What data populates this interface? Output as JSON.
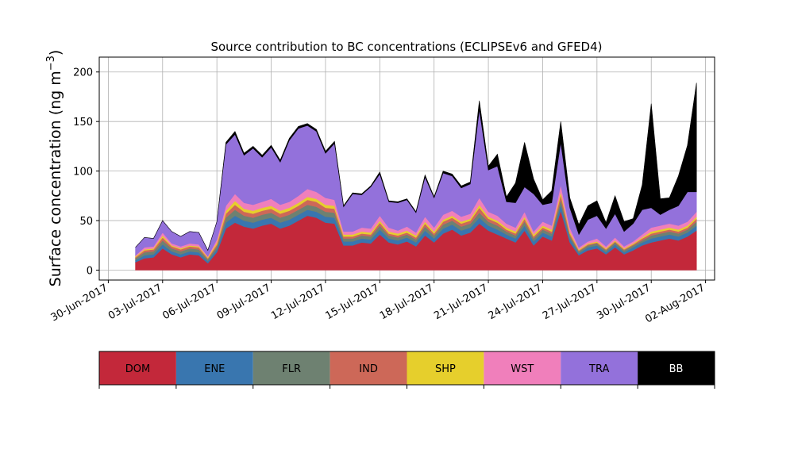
{
  "chart_data": {
    "type": "area",
    "stacked": true,
    "title": "Source contribution to BC concentrations (ECLIPSEv6 and GFED4)",
    "ylabel": "Surface concentration (ng m",
    "ylabel_unit_exponent": "−3",
    "ylabel_close": ")",
    "xlabel": "",
    "x_axis_type": "date",
    "xlim": [
      "2017-06-29T12:00",
      "2017-08-02T12:00"
    ],
    "ylim": [
      -10,
      215
    ],
    "yticks": [
      0,
      50,
      100,
      150,
      200
    ],
    "xticks": [
      "2017-06-30",
      "2017-07-03",
      "2017-07-06",
      "2017-07-09",
      "2017-07-12",
      "2017-07-15",
      "2017-07-18",
      "2017-07-21",
      "2017-07-24",
      "2017-07-27",
      "2017-07-30",
      "2017-08-02"
    ],
    "xtick_labels": [
      "30-Jun-2017",
      "03-Jul-2017",
      "06-Jul-2017",
      "09-Jul-2017",
      "12-Jul-2017",
      "15-Jul-2017",
      "18-Jul-2017",
      "21-Jul-2017",
      "24-Jul-2017",
      "27-Jul-2017",
      "30-Jul-2017",
      "02-Aug-2017"
    ],
    "grid": true,
    "legend_placement": "below",
    "x": [
      "2017-07-01T12:00",
      "2017-07-02T00:00",
      "2017-07-02T12:00",
      "2017-07-03T00:00",
      "2017-07-03T12:00",
      "2017-07-04T00:00",
      "2017-07-04T12:00",
      "2017-07-05T00:00",
      "2017-07-05T12:00",
      "2017-07-06T00:00",
      "2017-07-06T12:00",
      "2017-07-07T00:00",
      "2017-07-07T12:00",
      "2017-07-08T00:00",
      "2017-07-08T12:00",
      "2017-07-09T00:00",
      "2017-07-09T12:00",
      "2017-07-10T00:00",
      "2017-07-10T12:00",
      "2017-07-11T00:00",
      "2017-07-11T12:00",
      "2017-07-12T00:00",
      "2017-07-12T12:00",
      "2017-07-13T00:00",
      "2017-07-13T12:00",
      "2017-07-14T00:00",
      "2017-07-14T12:00",
      "2017-07-15T00:00",
      "2017-07-15T12:00",
      "2017-07-16T00:00",
      "2017-07-16T12:00",
      "2017-07-17T00:00",
      "2017-07-17T12:00",
      "2017-07-18T00:00",
      "2017-07-18T12:00",
      "2017-07-19T00:00",
      "2017-07-19T12:00",
      "2017-07-20T00:00",
      "2017-07-20T12:00",
      "2017-07-21T00:00",
      "2017-07-21T12:00",
      "2017-07-22T00:00",
      "2017-07-22T12:00",
      "2017-07-23T00:00",
      "2017-07-23T12:00",
      "2017-07-24T00:00",
      "2017-07-24T12:00",
      "2017-07-25T00:00",
      "2017-07-25T12:00",
      "2017-07-26T00:00",
      "2017-07-26T12:00",
      "2017-07-27T00:00",
      "2017-07-27T12:00",
      "2017-07-28T00:00",
      "2017-07-28T12:00",
      "2017-07-29T00:00",
      "2017-07-29T12:00",
      "2017-07-30T00:00",
      "2017-07-30T12:00",
      "2017-07-31T00:00",
      "2017-07-31T12:00",
      "2017-08-01T00:00",
      "2017-08-01T12:00"
    ],
    "series": [
      {
        "name": "DOM",
        "color": "#c3283a",
        "values": [
          8,
          12,
          13,
          22,
          16,
          13,
          16,
          15,
          7,
          18,
          42,
          48,
          44,
          42,
          45,
          47,
          42,
          45,
          50,
          55,
          53,
          48,
          47,
          25,
          25,
          28,
          27,
          36,
          28,
          26,
          29,
          24,
          35,
          28,
          37,
          41,
          35,
          38,
          47,
          40,
          36,
          32,
          28,
          40,
          25,
          34,
          30,
          60,
          28,
          15,
          20,
          22,
          16,
          23,
          16,
          20,
          25,
          28,
          30,
          32,
          30,
          34,
          40
        ]
      },
      {
        "name": "ENE",
        "color": "#3976af",
        "values": [
          2,
          3,
          3,
          4,
          3,
          3,
          3,
          3,
          2,
          3,
          6,
          7,
          6,
          6,
          6,
          6,
          6,
          6,
          6,
          6,
          6,
          6,
          6,
          4,
          4,
          4,
          4,
          5,
          4,
          4,
          4,
          4,
          5,
          4,
          5,
          5,
          5,
          5,
          6,
          5,
          5,
          4,
          4,
          5,
          4,
          4,
          4,
          6,
          4,
          2,
          3,
          3,
          2,
          3,
          2,
          3,
          3,
          4,
          4,
          4,
          4,
          4,
          5
        ]
      },
      {
        "name": "FLR",
        "color": "#6e8171",
        "values": [
          2,
          3,
          3,
          4,
          3,
          3,
          3,
          3,
          2,
          3,
          5,
          6,
          5,
          5,
          5,
          5,
          5,
          5,
          5,
          5,
          5,
          5,
          5,
          3,
          3,
          3,
          3,
          4,
          3,
          3,
          3,
          3,
          4,
          3,
          4,
          4,
          4,
          4,
          5,
          4,
          4,
          3,
          3,
          4,
          3,
          3,
          3,
          5,
          3,
          2,
          2,
          2,
          2,
          2,
          2,
          2,
          2,
          3,
          3,
          3,
          3,
          3,
          4
        ]
      },
      {
        "name": "IND",
        "color": "#cd6858",
        "values": [
          1,
          2,
          2,
          3,
          2,
          2,
          2,
          2,
          1,
          2,
          4,
          5,
          4,
          4,
          4,
          4,
          4,
          4,
          4,
          5,
          5,
          4,
          4,
          2,
          2,
          2,
          2,
          3,
          2,
          2,
          2,
          2,
          3,
          2,
          3,
          3,
          3,
          3,
          5,
          3,
          3,
          2,
          2,
          3,
          2,
          2,
          2,
          5,
          2,
          1,
          1,
          1,
          1,
          1,
          1,
          1,
          2,
          2,
          2,
          2,
          2,
          2,
          3
        ]
      },
      {
        "name": "SHP",
        "color": "#e6cf2c",
        "values": [
          1,
          1,
          1,
          2,
          1,
          1,
          1,
          1,
          1,
          2,
          3,
          4,
          3,
          3,
          3,
          3,
          3,
          3,
          3,
          3,
          3,
          3,
          3,
          2,
          2,
          2,
          2,
          2,
          2,
          2,
          2,
          2,
          2,
          2,
          2,
          2,
          2,
          2,
          3,
          2,
          2,
          2,
          2,
          2,
          2,
          2,
          2,
          3,
          2,
          1,
          1,
          1,
          1,
          1,
          1,
          1,
          1,
          2,
          2,
          2,
          2,
          2,
          2
        ]
      },
      {
        "name": "WST",
        "color": "#f07fbb",
        "values": [
          1,
          2,
          2,
          3,
          2,
          2,
          2,
          2,
          1,
          3,
          5,
          7,
          6,
          6,
          6,
          7,
          6,
          6,
          7,
          8,
          7,
          7,
          6,
          3,
          3,
          4,
          4,
          5,
          4,
          3,
          4,
          3,
          5,
          4,
          5,
          5,
          5,
          5,
          7,
          5,
          5,
          4,
          4,
          5,
          3,
          4,
          4,
          7,
          4,
          2,
          2,
          3,
          2,
          3,
          2,
          2,
          3,
          4,
          4,
          4,
          4,
          4,
          5
        ]
      },
      {
        "name": "TRA",
        "color": "#9371db",
        "values": [
          8,
          10,
          8,
          12,
          12,
          10,
          12,
          12,
          6,
          18,
          62,
          60,
          48,
          57,
          45,
          52,
          43,
          62,
          68,
          64,
          61,
          45,
          57,
          25,
          38,
          33,
          42,
          42,
          26,
          28,
          27,
          20,
          40,
          30,
          42,
          35,
          29,
          30,
          89,
          42,
          50,
          22,
          25,
          25,
          38,
          17,
          23,
          43,
          20,
          13,
          22,
          23,
          18,
          24,
          15,
          18,
          25,
          20,
          11,
          14,
          20,
          30,
          20
        ]
      },
      {
        "name": "BB",
        "color": "#000000",
        "values": [
          0,
          0,
          0,
          0,
          0,
          0,
          0,
          0,
          0,
          0,
          2,
          3,
          2,
          2,
          2,
          2,
          2,
          2,
          2,
          2,
          2,
          2,
          2,
          1,
          1,
          1,
          1,
          2,
          1,
          1,
          1,
          1,
          2,
          1,
          2,
          2,
          2,
          2,
          9,
          4,
          12,
          5,
          20,
          45,
          15,
          5,
          12,
          21,
          10,
          10,
          14,
          15,
          6,
          18,
          10,
          5,
          25,
          105,
          16,
          12,
          30,
          47,
          110
        ]
      }
    ],
    "legend": [
      "DOM",
      "ENE",
      "FLR",
      "IND",
      "SHP",
      "WST",
      "TRA",
      "BB"
    ]
  }
}
